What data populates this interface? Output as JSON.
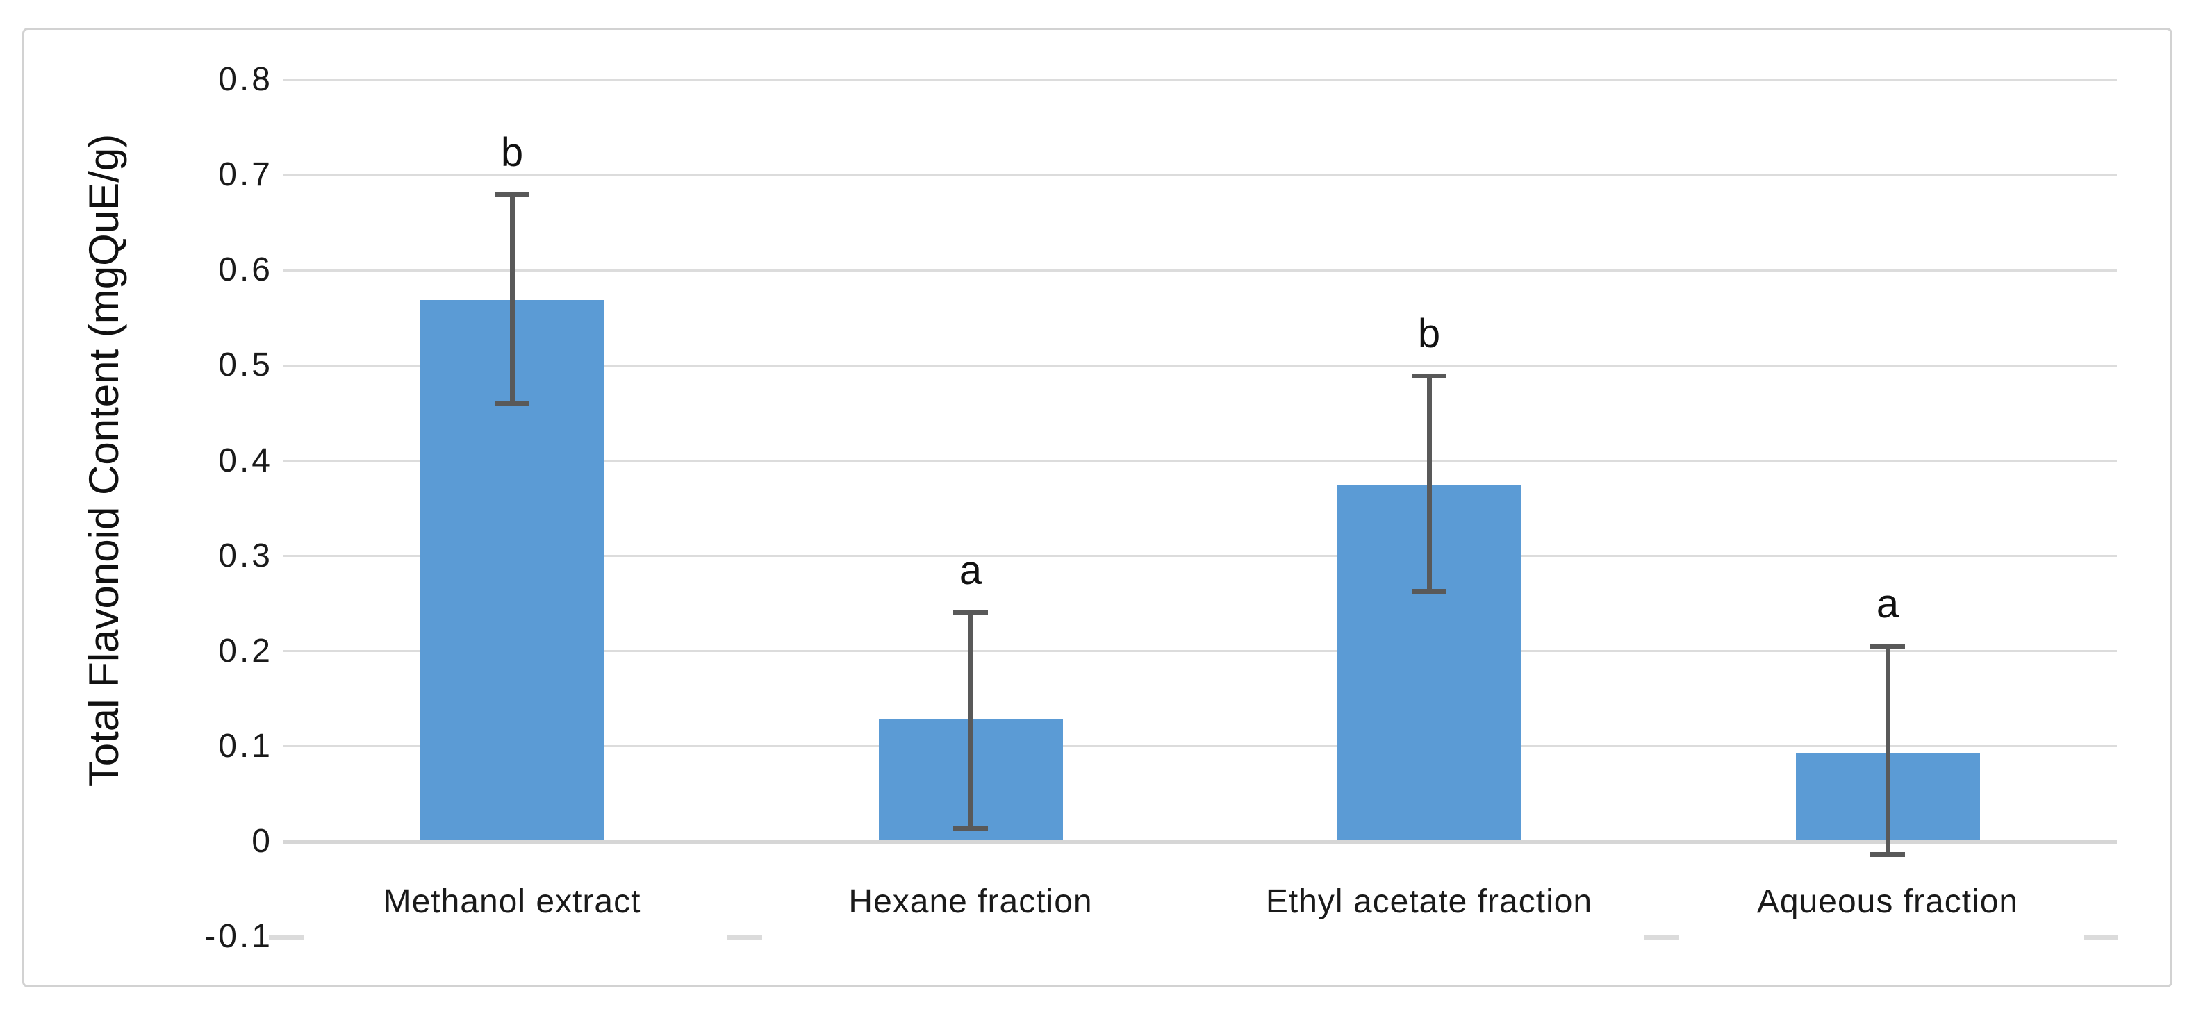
{
  "chart_data": {
    "type": "bar",
    "title": "",
    "xlabel": "",
    "ylabel": "Total Flavonoid Content (mgQuE/g)",
    "ylim": [
      -0.1,
      0.8
    ],
    "grid": true,
    "legend": false,
    "categories": [
      "Methanol extract",
      "Hexane fraction",
      "Ethyl acetate fraction",
      "Aqueous fraction"
    ],
    "values": [
      0.569,
      0.128,
      0.374,
      0.093
    ],
    "error_bar_top": [
      0.68,
      0.241,
      0.489,
      0.206
    ],
    "error_bar_bottom": [
      0.461,
      0.014,
      0.263,
      -0.013
    ],
    "significance_letters": [
      "b",
      "a",
      "b",
      "a"
    ],
    "ytick_values": [
      0.8,
      0.7,
      0.6,
      0.5,
      0.4,
      0.3,
      0.2,
      0.1,
      0,
      -0.1
    ],
    "ytick_labels": [
      "0.8",
      "0.7",
      "0.6",
      "0.5",
      "0.4",
      "0.3",
      "0.2",
      "0.1",
      "0",
      "-0.1"
    ],
    "category_boundary_ticks_visible": [
      0,
      1,
      3,
      4
    ],
    "colors": {
      "bar": "#5b9bd5",
      "error_bar": "#595959",
      "gridline": "#dcdcdc",
      "zero_axis_line": "#d6d6d6",
      "frame_border": "#d2d2d2",
      "text": "#1a1a1a"
    }
  }
}
